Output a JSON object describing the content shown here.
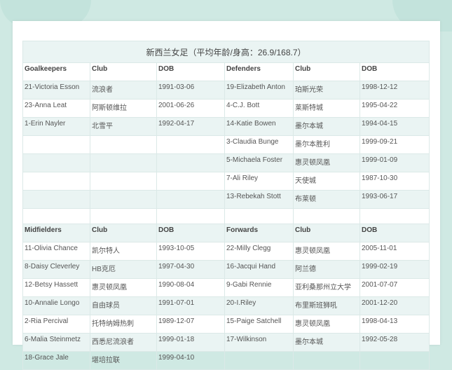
{
  "title": "新西兰女足（平均年龄/身高：26.9/168.7）",
  "sections": [
    {
      "left": {
        "header": [
          "Goalkeepers",
          "Club",
          "DOB"
        ],
        "rows": [
          [
            "21-Victoria Esson",
            "流浪者",
            "1991-03-06"
          ],
          [
            "23-Anna Leat",
            "阿斯顿维拉",
            "2001-06-26"
          ],
          [
            "1-Erin Nayler",
            "北雪平",
            "1992-04-17"
          ]
        ]
      },
      "right": {
        "header": [
          "Defenders",
          "Club",
          "DOB"
        ],
        "rows": [
          [
            "19-Elizabeth Anton",
            "珀斯光荣",
            "1998-12-12"
          ],
          [
            "4-C.J. Bott",
            "莱斯特城",
            "1995-04-22"
          ],
          [
            "14-Katie Bowen",
            "墨尔本城",
            "1994-04-15"
          ],
          [
            "3-Claudia Bunge",
            "墨尔本胜利",
            "1999-09-21"
          ],
          [
            "5-Michaela Foster",
            "惠灵顿凤凰",
            "1999-01-09"
          ],
          [
            "7-Ali Riley",
            "天使城",
            "1987-10-30"
          ],
          [
            "13-Rebekah Stott",
            "布莱顿",
            "1993-06-17"
          ]
        ]
      }
    },
    {
      "left": {
        "header": [
          "Midfielders",
          "Club",
          "DOB"
        ],
        "rows": [
          [
            "11-Olivia Chance",
            "凯尔特人",
            "1993-10-05"
          ],
          [
            "8-Daisy Cleverley",
            "HB克厄",
            "1997-04-30"
          ],
          [
            "12-Betsy Hassett",
            "惠灵顿凤凰",
            "1990-08-04"
          ],
          [
            "10-Annalie Longo",
            "自由球员",
            "1991-07-01"
          ],
          [
            "2-Ria Percival",
            "托特纳姆热刺",
            "1989-12-07"
          ],
          [
            "6-Malia Steinmetz",
            "西悉尼流浪者",
            "1999-01-18"
          ],
          [
            "18-Grace Jale",
            "堪培拉联",
            "1999-04-10"
          ]
        ]
      },
      "right": {
        "header": [
          "Forwards",
          "Club",
          "DOB"
        ],
        "rows": [
          [
            "22-Milly Clegg",
            "惠灵顿凤凰",
            "2005-11-01"
          ],
          [
            "16-Jacqui Hand",
            "阿兰德",
            "1999-02-19"
          ],
          [
            "9-Gabi Rennie",
            "亚利桑那州立大学",
            "2001-07-07"
          ],
          [
            "20-I.Riley",
            "布里斯班狮吼",
            "2001-12-20"
          ],
          [
            "15-Paige Satchell",
            "惠灵顿凤凰",
            "1998-04-13"
          ],
          [
            "17-Wilkinson",
            "墨尔本城",
            "1992-05-28"
          ]
        ]
      }
    }
  ]
}
